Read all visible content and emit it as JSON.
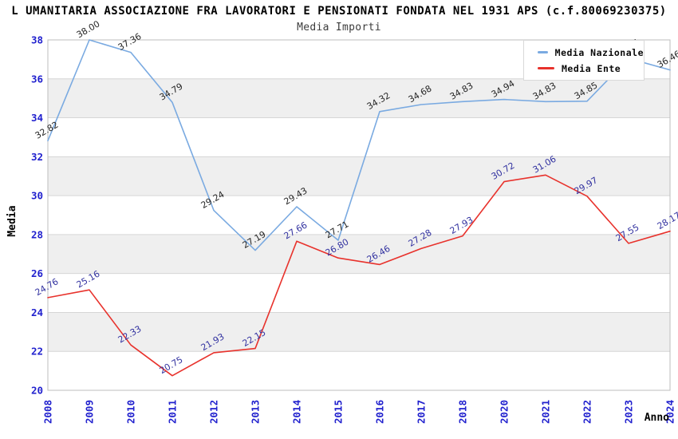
{
  "title": "L UMANITARIA ASSOCIAZIONE FRA LAVORATORI E PENSIONATI FONDATA NEL 1931 APS (c.f.80069230375)",
  "subtitle": "Media Importi",
  "chart_data": {
    "type": "line",
    "categories": [
      "2008",
      "2009",
      "2010",
      "2011",
      "2012",
      "2013",
      "2014",
      "2015",
      "2016",
      "2017",
      "2018",
      "2020",
      "2021",
      "2022",
      "2023",
      "2024"
    ],
    "series": [
      {
        "name": "Media Nazionale",
        "color": "#7AAAE1",
        "label_color": "#262626",
        "values": [
          32.82,
          38.0,
          37.36,
          34.79,
          29.24,
          27.19,
          29.43,
          27.71,
          34.32,
          34.68,
          34.83,
          34.94,
          34.83,
          34.85,
          37.05,
          36.46
        ]
      },
      {
        "name": "Media Ente",
        "color": "#E8322C",
        "label_color": "#3232A0",
        "values": [
          24.76,
          25.16,
          22.33,
          20.75,
          21.93,
          22.15,
          27.66,
          26.8,
          26.46,
          27.28,
          27.93,
          30.72,
          31.06,
          29.97,
          27.55,
          28.17
        ]
      }
    ],
    "xlabel": "Anno",
    "ylabel": "Media",
    "ylim": [
      20,
      38
    ],
    "ytick_step": 2,
    "grid": true,
    "legend_position": "top-right",
    "gray_bands": [
      [
        22,
        24
      ],
      [
        26,
        28
      ],
      [
        30,
        32
      ],
      [
        34,
        36
      ]
    ],
    "colors": {
      "tick_label": "#2121CE",
      "gridline": "#D6D6D6",
      "band": "#EFEFEF",
      "plot_border": "#BDBDBD",
      "axis_title": "#000000"
    }
  },
  "legend": {
    "items": [
      {
        "label": "Media Nazionale",
        "color": "#7AAAE1"
      },
      {
        "label": "Media Ente",
        "color": "#E8322C"
      }
    ]
  }
}
